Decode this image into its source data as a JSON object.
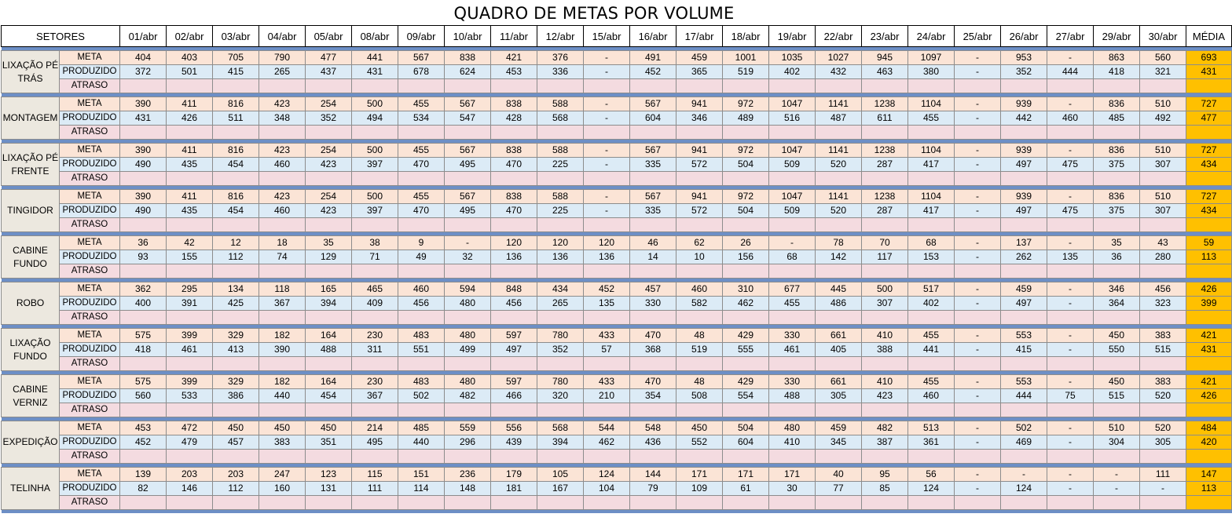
{
  "title": "QUADRO DE METAS POR VOLUME",
  "sector_header": "SETORES",
  "avg_header": "MÉDIA",
  "dates": [
    "01/abr",
    "02/abr",
    "03/abr",
    "04/abr",
    "05/abr",
    "08/abr",
    "09/abr",
    "10/abr",
    "11/abr",
    "12/abr",
    "15/abr",
    "16/abr",
    "17/abr",
    "18/abr",
    "19/abr",
    "22/abr",
    "23/abr",
    "24/abr",
    "25/abr",
    "26/abr",
    "27/abr",
    "29/abr",
    "30/abr"
  ],
  "row_labels": {
    "meta": "META",
    "produzido": "PRODUZIDO",
    "atraso": "ATRASO"
  },
  "sectors": [
    {
      "name": "LIXAÇÃO PÉ TRÁS",
      "meta": [
        "404",
        "403",
        "705",
        "790",
        "477",
        "441",
        "567",
        "838",
        "421",
        "376",
        "-",
        "491",
        "459",
        "1001",
        "1035",
        "1027",
        "945",
        "1097",
        "-",
        "953",
        "-",
        "863",
        "560"
      ],
      "meta_avg": "693",
      "produzido": [
        "372",
        "501",
        "415",
        "265",
        "437",
        "431",
        "678",
        "624",
        "453",
        "336",
        "-",
        "452",
        "365",
        "519",
        "402",
        "432",
        "463",
        "380",
        "-",
        "352",
        "444",
        "418",
        "321"
      ],
      "produzido_avg": "431"
    },
    {
      "name": "MONTAGEM",
      "meta": [
        "390",
        "411",
        "816",
        "423",
        "254",
        "500",
        "455",
        "567",
        "838",
        "588",
        "-",
        "567",
        "941",
        "972",
        "1047",
        "1141",
        "1238",
        "1104",
        "-",
        "939",
        "-",
        "836",
        "510"
      ],
      "meta_avg": "727",
      "produzido": [
        "431",
        "426",
        "511",
        "348",
        "352",
        "494",
        "534",
        "547",
        "428",
        "568",
        "-",
        "604",
        "346",
        "489",
        "516",
        "487",
        "611",
        "455",
        "-",
        "442",
        "460",
        "485",
        "492"
      ],
      "produzido_avg": "477"
    },
    {
      "name": "LIXAÇÃO PÉ FRENTE",
      "meta": [
        "390",
        "411",
        "816",
        "423",
        "254",
        "500",
        "455",
        "567",
        "838",
        "588",
        "-",
        "567",
        "941",
        "972",
        "1047",
        "1141",
        "1238",
        "1104",
        "-",
        "939",
        "-",
        "836",
        "510"
      ],
      "meta_avg": "727",
      "produzido": [
        "490",
        "435",
        "454",
        "460",
        "423",
        "397",
        "470",
        "495",
        "470",
        "225",
        "-",
        "335",
        "572",
        "504",
        "509",
        "520",
        "287",
        "417",
        "-",
        "497",
        "475",
        "375",
        "307"
      ],
      "produzido_avg": "434"
    },
    {
      "name": "TINGIDOR",
      "meta": [
        "390",
        "411",
        "816",
        "423",
        "254",
        "500",
        "455",
        "567",
        "838",
        "588",
        "-",
        "567",
        "941",
        "972",
        "1047",
        "1141",
        "1238",
        "1104",
        "-",
        "939",
        "-",
        "836",
        "510"
      ],
      "meta_avg": "727",
      "produzido": [
        "490",
        "435",
        "454",
        "460",
        "423",
        "397",
        "470",
        "495",
        "470",
        "225",
        "-",
        "335",
        "572",
        "504",
        "509",
        "520",
        "287",
        "417",
        "-",
        "497",
        "475",
        "375",
        "307"
      ],
      "produzido_avg": "434"
    },
    {
      "name": "CABINE FUNDO",
      "meta": [
        "36",
        "42",
        "12",
        "18",
        "35",
        "38",
        "9",
        "-",
        "120",
        "120",
        "120",
        "46",
        "62",
        "26",
        "-",
        "78",
        "70",
        "68",
        "-",
        "137",
        "-",
        "35",
        "43"
      ],
      "meta_avg": "59",
      "produzido": [
        "93",
        "155",
        "112",
        "74",
        "129",
        "71",
        "49",
        "32",
        "136",
        "136",
        "136",
        "14",
        "10",
        "156",
        "68",
        "142",
        "117",
        "153",
        "-",
        "262",
        "135",
        "36",
        "280"
      ],
      "produzido_avg": "113"
    },
    {
      "name": "ROBO",
      "meta": [
        "362",
        "295",
        "134",
        "118",
        "165",
        "465",
        "460",
        "594",
        "848",
        "434",
        "452",
        "457",
        "460",
        "310",
        "677",
        "445",
        "500",
        "517",
        "-",
        "459",
        "-",
        "346",
        "456"
      ],
      "meta_avg": "426",
      "produzido": [
        "400",
        "391",
        "425",
        "367",
        "394",
        "409",
        "456",
        "480",
        "456",
        "265",
        "135",
        "330",
        "582",
        "462",
        "455",
        "486",
        "307",
        "402",
        "-",
        "497",
        "-",
        "364",
        "323"
      ],
      "produzido_avg": "399"
    },
    {
      "name": "LIXAÇÃO FUNDO",
      "meta": [
        "575",
        "399",
        "329",
        "182",
        "164",
        "230",
        "483",
        "480",
        "597",
        "780",
        "433",
        "470",
        "48",
        "429",
        "330",
        "661",
        "410",
        "455",
        "-",
        "553",
        "-",
        "450",
        "383"
      ],
      "meta_avg": "421",
      "produzido": [
        "418",
        "461",
        "413",
        "390",
        "488",
        "311",
        "551",
        "499",
        "497",
        "352",
        "57",
        "368",
        "519",
        "555",
        "461",
        "405",
        "388",
        "441",
        "-",
        "415",
        "-",
        "550",
        "515"
      ],
      "produzido_avg": "431"
    },
    {
      "name": "CABINE VERNIZ",
      "meta": [
        "575",
        "399",
        "329",
        "182",
        "164",
        "230",
        "483",
        "480",
        "597",
        "780",
        "433",
        "470",
        "48",
        "429",
        "330",
        "661",
        "410",
        "455",
        "-",
        "553",
        "-",
        "450",
        "383"
      ],
      "meta_avg": "421",
      "produzido": [
        "560",
        "533",
        "386",
        "440",
        "454",
        "367",
        "502",
        "482",
        "466",
        "320",
        "210",
        "354",
        "508",
        "554",
        "488",
        "305",
        "423",
        "460",
        "-",
        "444",
        "75",
        "515",
        "520"
      ],
      "produzido_avg": "426"
    },
    {
      "name": "EXPEDIÇÃO",
      "meta": [
        "453",
        "472",
        "450",
        "450",
        "450",
        "214",
        "485",
        "559",
        "556",
        "568",
        "544",
        "548",
        "450",
        "504",
        "480",
        "459",
        "482",
        "513",
        "-",
        "502",
        "-",
        "510",
        "520"
      ],
      "meta_avg": "484",
      "produzido": [
        "452",
        "479",
        "457",
        "383",
        "351",
        "495",
        "440",
        "296",
        "439",
        "394",
        "462",
        "436",
        "552",
        "604",
        "410",
        "345",
        "387",
        "361",
        "-",
        "469",
        "-",
        "304",
        "305"
      ],
      "produzido_avg": "420"
    },
    {
      "name": "TELINHA",
      "meta": [
        "139",
        "203",
        "203",
        "247",
        "123",
        "115",
        "151",
        "236",
        "179",
        "105",
        "124",
        "144",
        "171",
        "171",
        "171",
        "40",
        "95",
        "56",
        "-",
        "-",
        "-",
        "-",
        "111"
      ],
      "meta_avg": "147",
      "produzido": [
        "82",
        "146",
        "112",
        "160",
        "131",
        "111",
        "114",
        "148",
        "181",
        "167",
        "104",
        "79",
        "109",
        "61",
        "30",
        "77",
        "85",
        "124",
        "-",
        "124",
        "-",
        "-",
        "-"
      ],
      "produzido_avg": "113"
    }
  ]
}
